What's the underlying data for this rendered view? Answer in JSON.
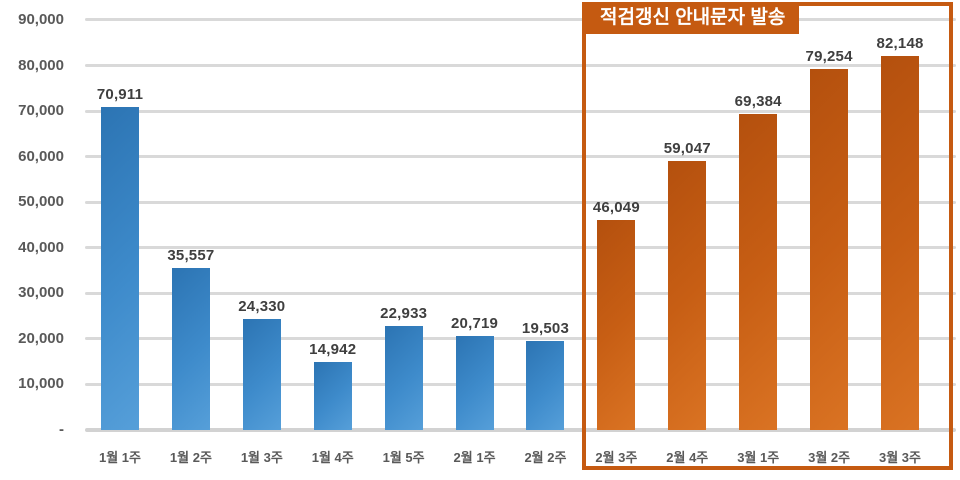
{
  "chart_data": {
    "type": "bar",
    "categories": [
      "1월 1주",
      "1월 2주",
      "1월 3주",
      "1월 4주",
      "1월 5주",
      "2월 1주",
      "2월 2주",
      "2월 3주",
      "2월 4주",
      "3월 1주",
      "3월 2주",
      "3월 3주"
    ],
    "values": [
      70911,
      35557,
      24330,
      14942,
      22933,
      20719,
      19503,
      46049,
      59047,
      69384,
      79254,
      82148
    ],
    "value_labels": [
      "70,911",
      "35,557",
      "24,330",
      "14,942",
      "22,933",
      "20,719",
      "19,503",
      "46,049",
      "59,047",
      "69,384",
      "79,254",
      "82,148"
    ],
    "highlight_from_index": 7,
    "ylim": [
      0,
      90000
    ],
    "ytick_step": 10000,
    "ytick_labels": [
      "-",
      "10,000",
      "20,000",
      "30,000",
      "40,000",
      "50,000",
      "60,000",
      "70,000",
      "80,000",
      "90,000"
    ],
    "grid": true,
    "legend": "none",
    "xlabel": "",
    "ylabel": "",
    "annotation_box": {
      "label": "적검갱신 안내문자 발송",
      "covers_categories": [
        "2월 3주",
        "2월 4주",
        "3월 1주",
        "3월 2주",
        "3월 3주"
      ]
    },
    "colors": {
      "bar_default": "#2E7DBF",
      "bar_highlight": "#C55A11",
      "grid": "#D9D9D9",
      "axis_text": "#595959",
      "value_text": "#3F3F3F",
      "annotation_border": "#C55A11",
      "annotation_bg": "#C55A11",
      "annotation_text": "#FFFFFF"
    }
  }
}
